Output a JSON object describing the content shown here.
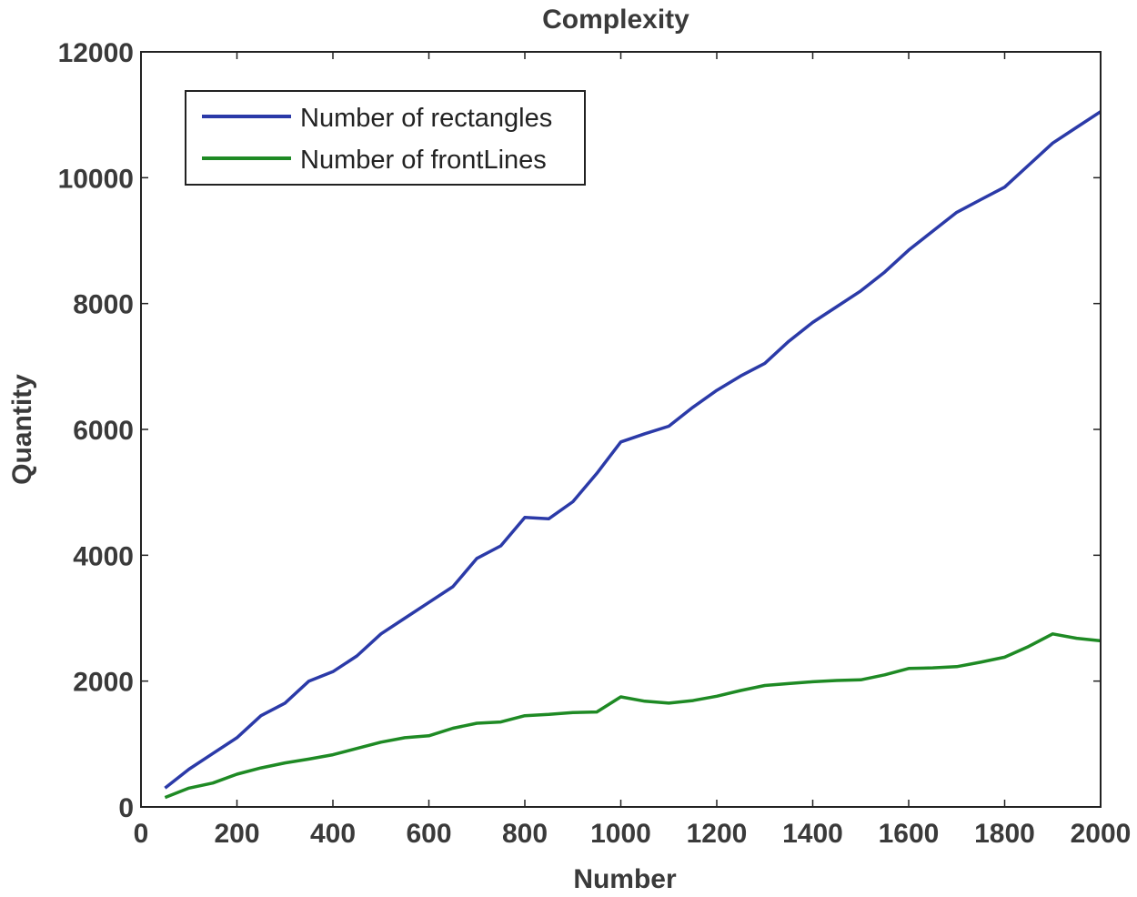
{
  "chart_data": {
    "type": "line",
    "title": "Complexity",
    "xlabel": "Number",
    "ylabel": "Quantity",
    "xlim": [
      0,
      2000
    ],
    "ylim": [
      0,
      12000
    ],
    "xticks": [
      0,
      200,
      400,
      600,
      800,
      1000,
      1200,
      1400,
      1600,
      1800,
      2000
    ],
    "yticks": [
      0,
      2000,
      4000,
      6000,
      8000,
      10000,
      12000
    ],
    "legend_position": "top-left",
    "series": [
      {
        "name": "Number of rectangles",
        "color": "#2b3aa8",
        "x": [
          50,
          100,
          150,
          200,
          250,
          300,
          350,
          400,
          450,
          500,
          550,
          600,
          650,
          700,
          750,
          800,
          850,
          900,
          950,
          1000,
          1050,
          1100,
          1150,
          1200,
          1250,
          1300,
          1350,
          1400,
          1450,
          1500,
          1550,
          1600,
          1650,
          1700,
          1750,
          1800,
          1850,
          1900,
          1950,
          2000
        ],
        "y": [
          300,
          600,
          850,
          1100,
          1450,
          1650,
          2000,
          2150,
          2400,
          2750,
          3000,
          3250,
          3500,
          3950,
          4150,
          4600,
          4580,
          4850,
          5300,
          5800,
          5930,
          6050,
          6350,
          6620,
          6850,
          7050,
          7400,
          7700,
          7950,
          8200,
          8500,
          8850,
          9150,
          9450,
          9650,
          9850,
          10200,
          10550,
          10800,
          11050
        ]
      },
      {
        "name": "Number of frontLines",
        "color": "#1e8a24",
        "x": [
          50,
          100,
          150,
          200,
          250,
          300,
          350,
          400,
          450,
          500,
          550,
          600,
          650,
          700,
          750,
          800,
          850,
          900,
          950,
          1000,
          1050,
          1100,
          1150,
          1200,
          1250,
          1300,
          1350,
          1400,
          1450,
          1500,
          1550,
          1600,
          1650,
          1700,
          1750,
          1800,
          1850,
          1900,
          1950,
          2000
        ],
        "y": [
          150,
          300,
          380,
          520,
          620,
          700,
          760,
          830,
          930,
          1030,
          1100,
          1130,
          1250,
          1330,
          1350,
          1450,
          1470,
          1500,
          1510,
          1750,
          1680,
          1650,
          1690,
          1760,
          1850,
          1930,
          1960,
          1990,
          2010,
          2020,
          2100,
          2200,
          2210,
          2230,
          2300,
          2380,
          2550,
          2750,
          2680,
          2640
        ]
      }
    ]
  }
}
